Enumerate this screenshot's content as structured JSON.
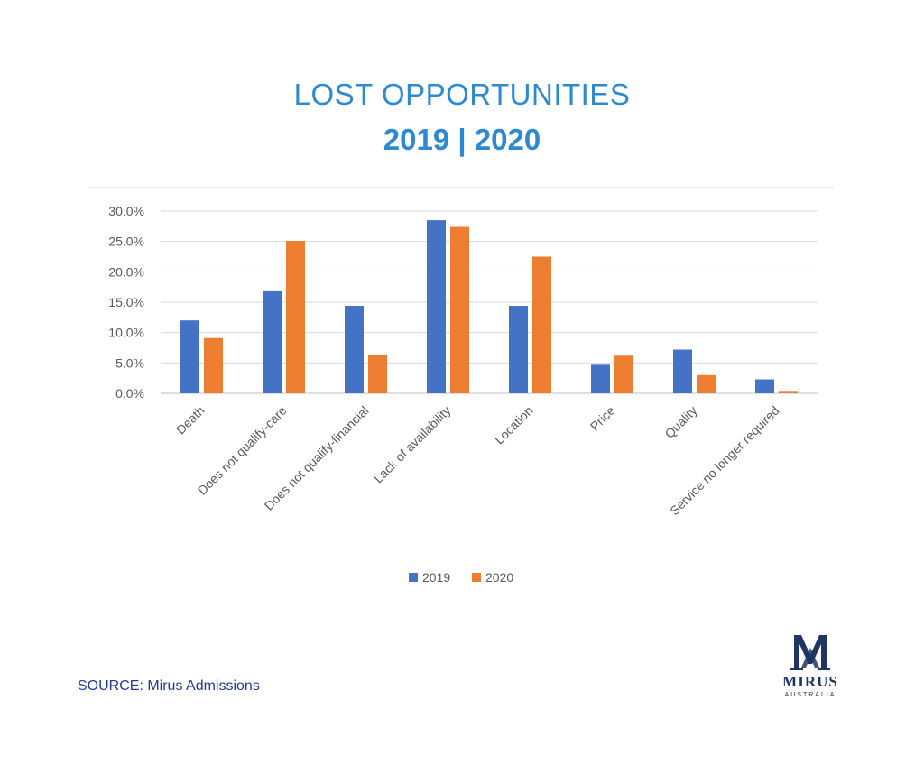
{
  "header": {
    "title": "LOST OPPORTUNITIES",
    "subtitle": "2019 | 2020"
  },
  "chart_data": {
    "type": "bar",
    "categories": [
      "Death",
      "Does not qualify-care",
      "Does not qualify-financial",
      "Lack of availability",
      "Location",
      "Price",
      "Quality",
      "Service no longer required"
    ],
    "series": [
      {
        "name": "2019",
        "color": "#4472c4",
        "values": [
          12.0,
          16.8,
          14.4,
          28.5,
          14.4,
          4.7,
          7.2,
          2.3
        ]
      },
      {
        "name": "2020",
        "color": "#ed7d31",
        "values": [
          9.1,
          25.1,
          6.4,
          27.4,
          22.5,
          6.2,
          3.0,
          0.4
        ]
      }
    ],
    "ylim": [
      0,
      30
    ],
    "yticks": [
      "0.0%",
      "5.0%",
      "10.0%",
      "15.0%",
      "20.0%",
      "25.0%",
      "30.0%"
    ],
    "ytick_values": [
      0,
      5,
      10,
      15,
      20,
      25,
      30
    ],
    "grid": true,
    "legend_position": "bottom"
  },
  "footer": {
    "source": "SOURCE: Mirus Admissions",
    "logo_word": "MIRUS",
    "logo_sub": "AUSTRALIA"
  }
}
